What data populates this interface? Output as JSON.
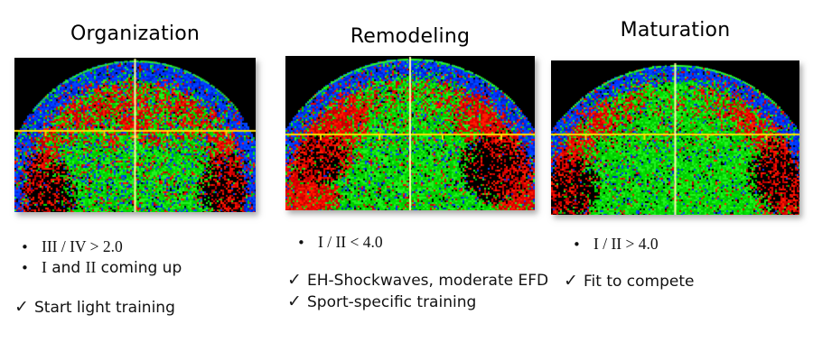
{
  "slide": {
    "background": "#ffffff"
  },
  "glyphs": {
    "bullet": "•",
    "check": "✓"
  },
  "colors": {
    "title_text": "#000000",
    "body_text": "#111111",
    "crosshair_horizontal": "#ffe000",
    "crosshair_vertical": "#ffffa6",
    "crest_green": "#2bff2b"
  },
  "scan_palette": {
    "greens": [
      "#00e000",
      "#21f321",
      "#00c400"
    ],
    "blues": [
      "#0033ff",
      "#0049ff",
      "#0022cc"
    ],
    "reds": [
      "#e80000",
      "#ff1e00",
      "#bf0000"
    ],
    "dark": "#000000"
  },
  "panels": [
    {
      "title": "Organization",
      "scan_label": "utc-scan-organization",
      "bullets": [
        {
          "segments": [
            {
              "text": "III / IV > 2.0",
              "serif": true
            }
          ]
        },
        {
          "segments": [
            {
              "text": "I",
              "serif": true
            },
            {
              "text": " and ",
              "serif": false
            },
            {
              "text": "II",
              "serif": true
            },
            {
              "text": " coming up",
              "serif": false
            }
          ]
        }
      ],
      "checks": [
        "Start light training"
      ]
    },
    {
      "title": "Remodeling",
      "scan_label": "utc-scan-remodeling",
      "bullets": [
        {
          "segments": [
            {
              "text": "I / II < 4.0",
              "serif": true
            }
          ]
        }
      ],
      "checks": [
        "EH-Shockwaves, moderate EFD",
        "Sport-specific training"
      ]
    },
    {
      "title": "Maturation",
      "scan_label": "utc-scan-maturation",
      "bullets": [
        {
          "segments": [
            {
              "text": "I / II > 4.0",
              "serif": true
            }
          ]
        }
      ],
      "checks": [
        "Fit to compete"
      ]
    }
  ]
}
